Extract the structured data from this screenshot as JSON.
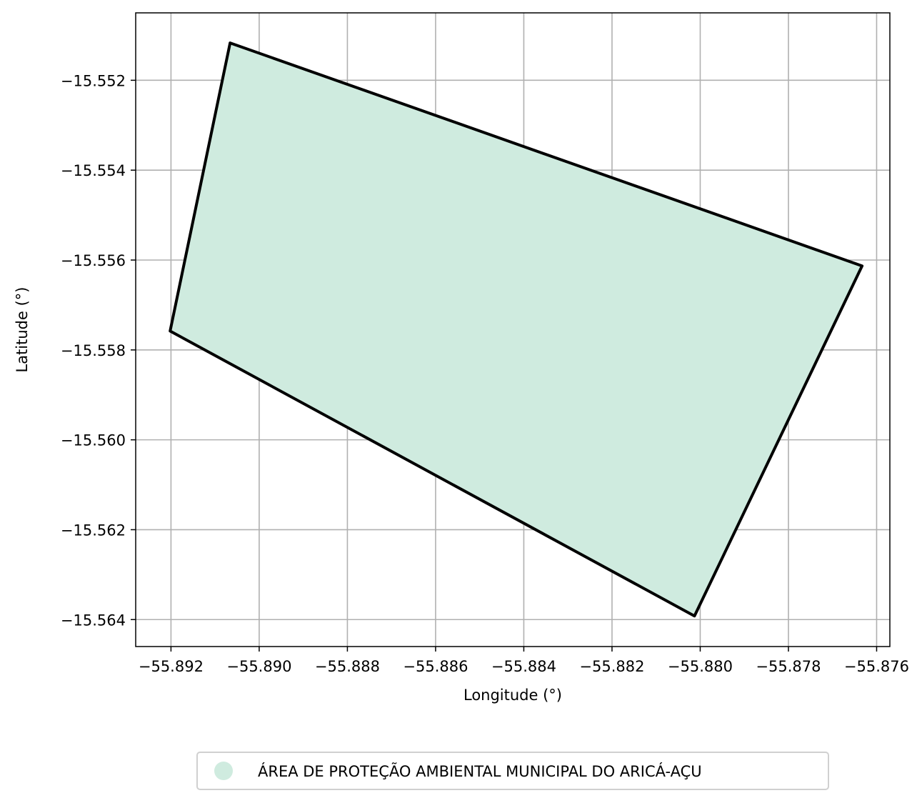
{
  "chart_data": {
    "type": "map",
    "xlabel": "Longitude (°)",
    "ylabel": "Latitude (°)",
    "xlim": [
      -55.8928,
      -55.8757
    ],
    "ylim": [
      -15.5646,
      -15.5505
    ],
    "grid": true,
    "xticks": [
      {
        "value": -55.892,
        "label": "−55.892"
      },
      {
        "value": -55.89,
        "label": "−55.890"
      },
      {
        "value": -55.888,
        "label": "−55.888"
      },
      {
        "value": -55.886,
        "label": "−55.886"
      },
      {
        "value": -55.884,
        "label": "−55.884"
      },
      {
        "value": -55.882,
        "label": "−55.882"
      },
      {
        "value": -55.88,
        "label": "−55.880"
      },
      {
        "value": -55.878,
        "label": "−55.878"
      },
      {
        "value": -55.876,
        "label": "−55.876"
      }
    ],
    "yticks": [
      {
        "value": -15.552,
        "label": "−15.552"
      },
      {
        "value": -15.554,
        "label": "−15.554"
      },
      {
        "value": -15.556,
        "label": "−15.556"
      },
      {
        "value": -15.558,
        "label": "−15.558"
      },
      {
        "value": -15.56,
        "label": "−15.560"
      },
      {
        "value": -15.562,
        "label": "−15.562"
      },
      {
        "value": -15.564,
        "label": "−15.564"
      }
    ],
    "polygons": [
      {
        "name": "ÁREA DE PROTEÇÃO AMBIENTAL MUNICIPAL DO ARICÁ-AÇU",
        "fill": "#cfebdf",
        "stroke": "#000000",
        "coordinates": [
          [
            -55.89066,
            -15.55117
          ],
          [
            -55.87633,
            -15.55613
          ],
          [
            -55.88013,
            -15.56392
          ],
          [
            -55.89202,
            -15.55758
          ]
        ]
      }
    ],
    "legend": {
      "position": "bottom-center",
      "entries": [
        {
          "label": "ÁREA DE PROTEÇÃO AMBIENTAL MUNICIPAL DO ARICÁ-AÇU",
          "color": "#cfebdf"
        }
      ]
    }
  }
}
